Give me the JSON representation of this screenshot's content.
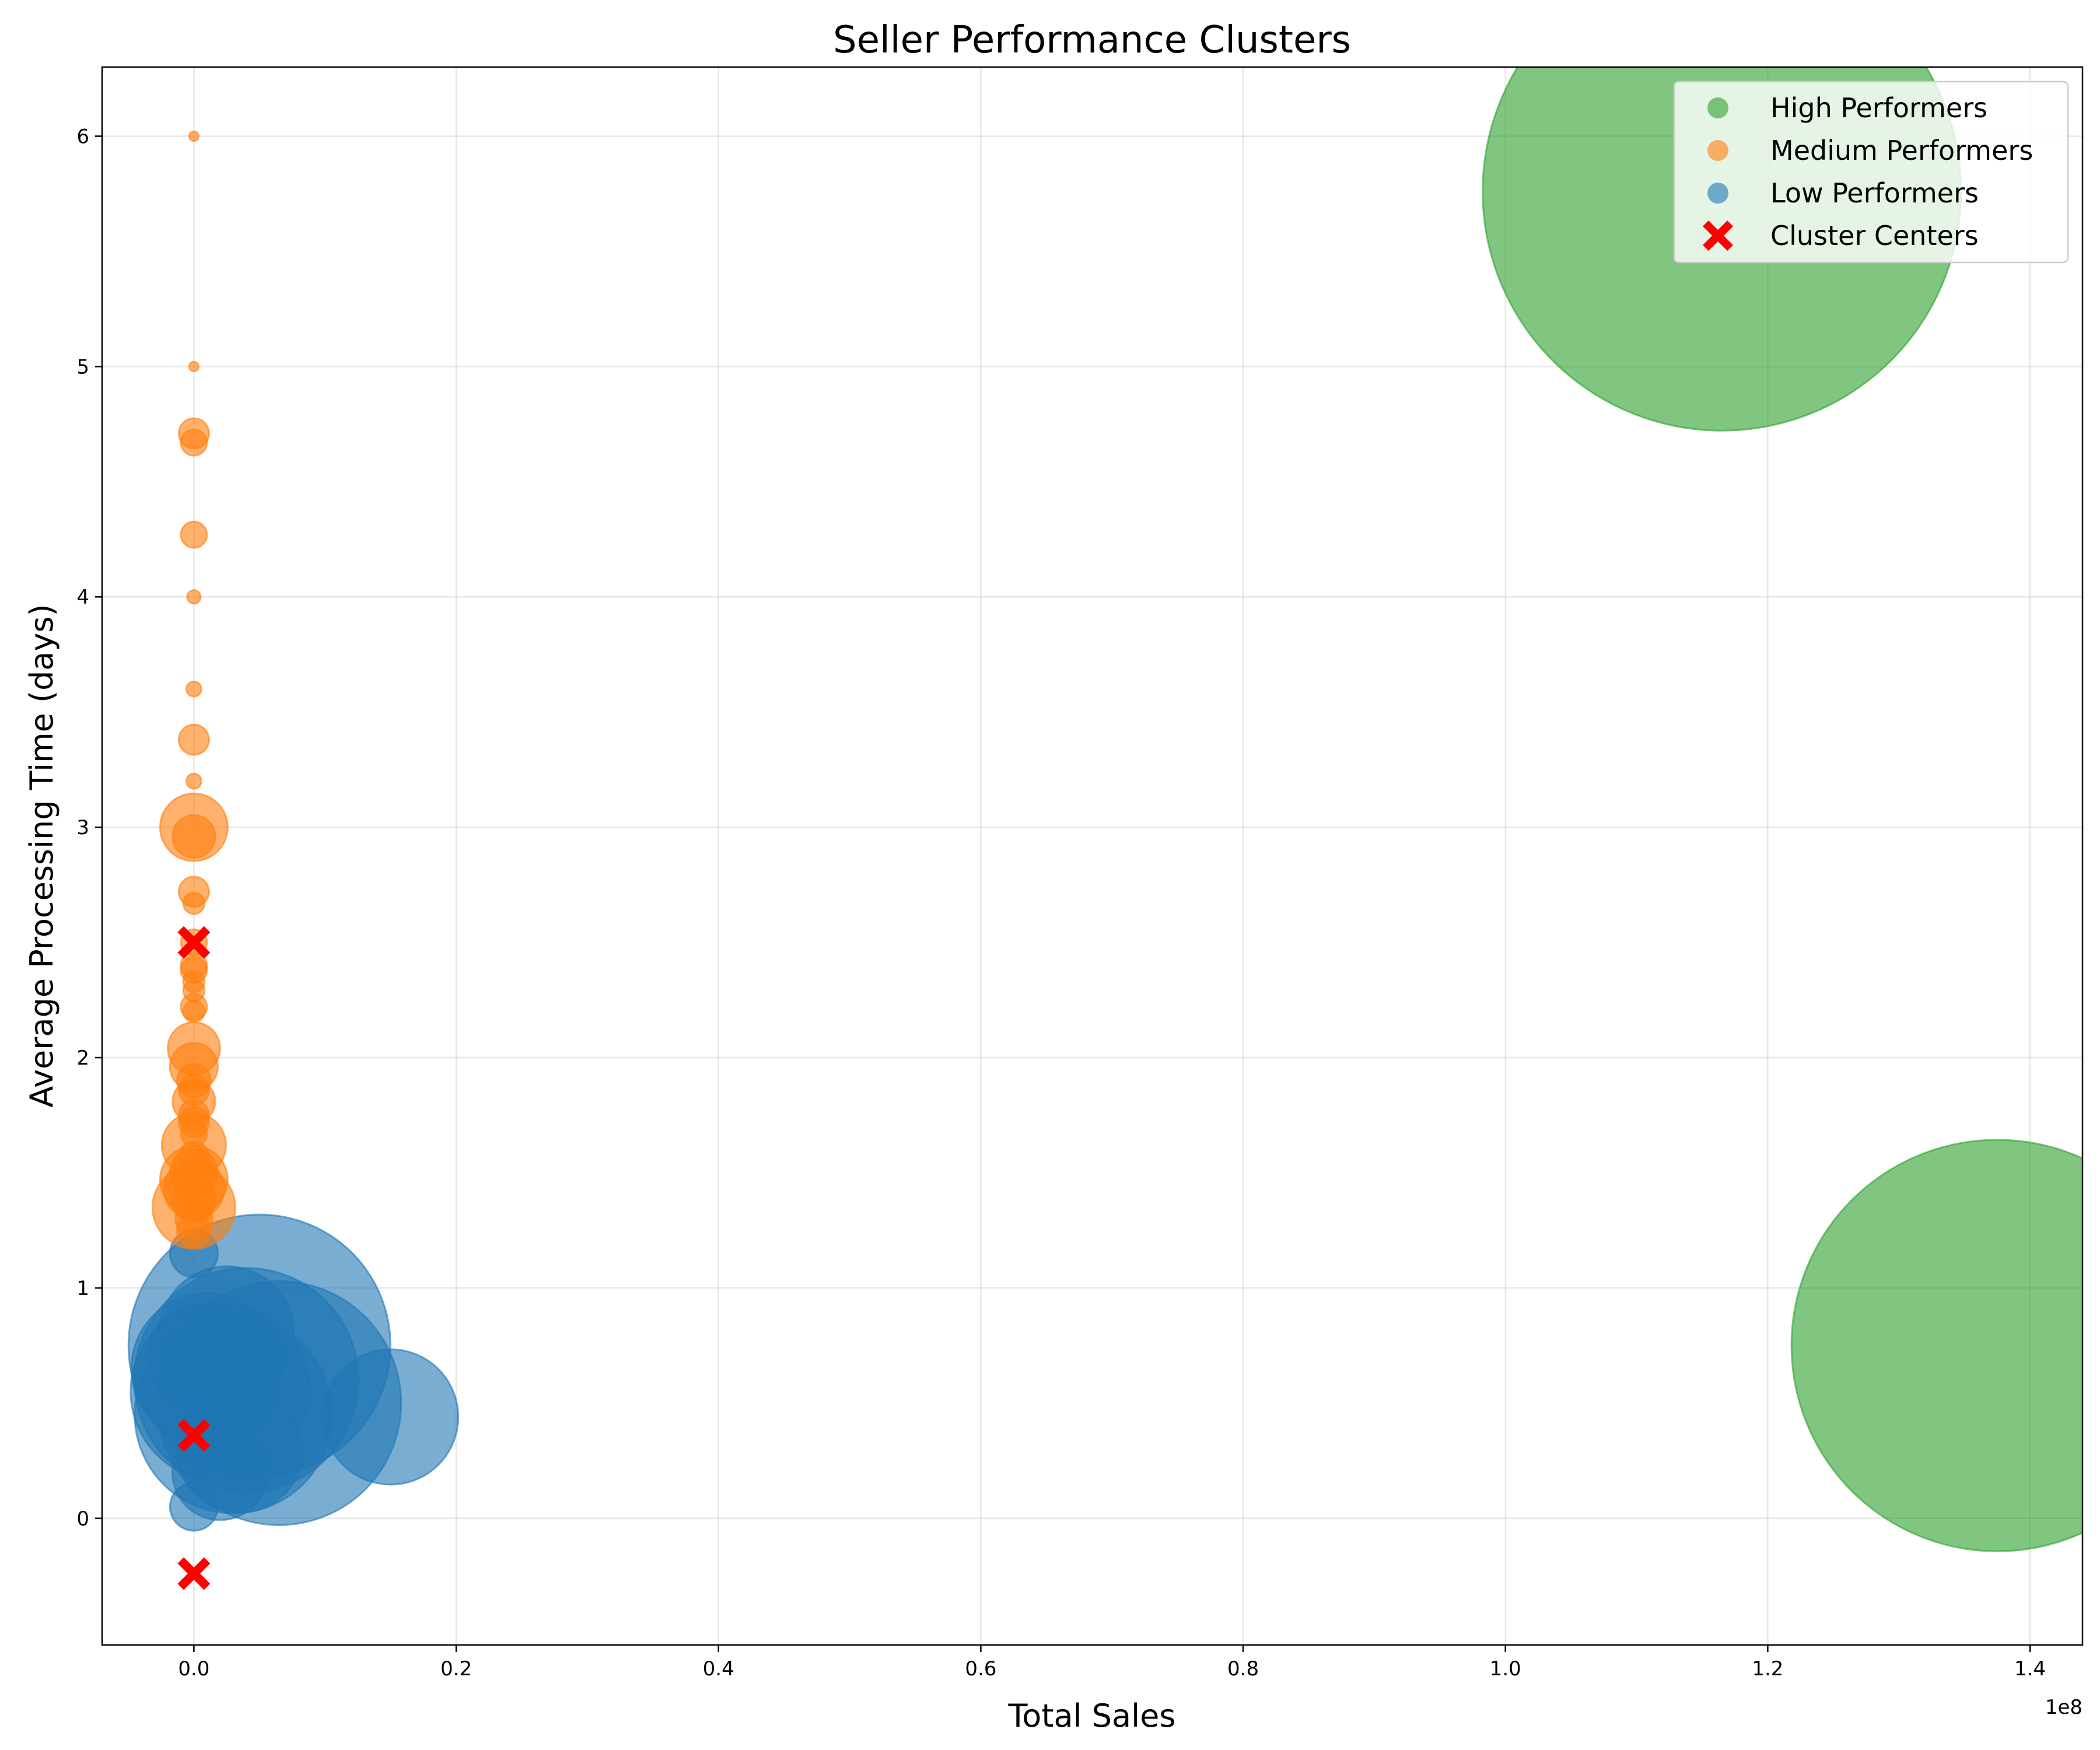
{
  "chart_data": {
    "type": "scatter",
    "title": "Seller Performance Clusters",
    "xlabel": "Total Sales",
    "ylabel": "Average Processing Time (days)",
    "x_offset_label": "1e8",
    "xlim": [
      -0.07,
      1.44
    ],
    "ylim": [
      -0.55,
      6.3
    ],
    "xticks": [
      0.0,
      0.2,
      0.4,
      0.6,
      0.8,
      1.0,
      1.2,
      1.4
    ],
    "xtick_labels": [
      "0.0",
      "0.2",
      "0.4",
      "0.6",
      "0.8",
      "1.0",
      "1.2",
      "1.4"
    ],
    "yticks": [
      0,
      1,
      2,
      3,
      4,
      5,
      6
    ],
    "ytick_labels": [
      "0",
      "1",
      "2",
      "3",
      "4",
      "5",
      "6"
    ],
    "grid": true,
    "legend_position": "top-right",
    "series": [
      {
        "name": "High Performers",
        "color": "#2ca02c",
        "marker": "circle",
        "points": [
          {
            "x": 1.165,
            "y": 5.76,
            "size": 1
          },
          {
            "x": 1.375,
            "y": 0.75,
            "size": 0.74
          }
        ]
      },
      {
        "name": "Medium Performers",
        "color": "#ff7f0e",
        "marker": "circle",
        "points": [
          {
            "x": 0.0,
            "y": 6.0,
            "size": 0.0004
          },
          {
            "x": 0.0,
            "y": 5.0,
            "size": 0.0004
          },
          {
            "x": 0.0,
            "y": 4.71,
            "size": 0.004
          },
          {
            "x": 0.0,
            "y": 4.67,
            "size": 0.003
          },
          {
            "x": 0.0,
            "y": 4.27,
            "size": 0.003
          },
          {
            "x": 0.0,
            "y": 4.0,
            "size": 0.0008
          },
          {
            "x": 0.0,
            "y": 3.6,
            "size": 0.001
          },
          {
            "x": 0.0,
            "y": 3.38,
            "size": 0.004
          },
          {
            "x": 0.0,
            "y": 3.2,
            "size": 0.001
          },
          {
            "x": 0.0,
            "y": 3.0,
            "size": 0.02
          },
          {
            "x": 0.0,
            "y": 2.96,
            "size": 0.008
          },
          {
            "x": 0.0,
            "y": 2.72,
            "size": 0.004
          },
          {
            "x": 0.0,
            "y": 2.67,
            "size": 0.002
          },
          {
            "x": 0.0,
            "y": 2.5,
            "size": 0.003
          },
          {
            "x": 0.0,
            "y": 2.4,
            "size": 0.003
          },
          {
            "x": 0.0,
            "y": 2.38,
            "size": 0.003
          },
          {
            "x": 0.0,
            "y": 2.33,
            "size": 0.002
          },
          {
            "x": 0.0,
            "y": 2.29,
            "size": 0.002
          },
          {
            "x": 0.0,
            "y": 2.22,
            "size": 0.003
          },
          {
            "x": 0.0,
            "y": 2.2,
            "size": 0.002
          },
          {
            "x": 0.0,
            "y": 2.04,
            "size": 0.012
          },
          {
            "x": 0.0,
            "y": 1.96,
            "size": 0.01
          },
          {
            "x": 0.0,
            "y": 1.9,
            "size": 0.005
          },
          {
            "x": 0.0,
            "y": 1.86,
            "size": 0.004
          },
          {
            "x": 0.0,
            "y": 1.81,
            "size": 0.008
          },
          {
            "x": 0.0,
            "y": 1.75,
            "size": 0.004
          },
          {
            "x": 0.0,
            "y": 1.72,
            "size": 0.004
          },
          {
            "x": 0.0,
            "y": 1.67,
            "size": 0.003
          },
          {
            "x": 0.0,
            "y": 1.62,
            "size": 0.018
          },
          {
            "x": 0.0,
            "y": 1.57,
            "size": 0.004
          },
          {
            "x": 0.0,
            "y": 1.5,
            "size": 0.01
          },
          {
            "x": 0.0,
            "y": 1.47,
            "size": 0.02
          },
          {
            "x": 0.0,
            "y": 1.43,
            "size": 0.016
          },
          {
            "x": 0.0,
            "y": 1.38,
            "size": 0.008
          },
          {
            "x": 0.0,
            "y": 1.35,
            "size": 0.03
          },
          {
            "x": 0.0,
            "y": 1.3,
            "size": 0.006
          },
          {
            "x": 0.0,
            "y": 1.25,
            "size": 0.005
          }
        ]
      },
      {
        "name": "Low Performers",
        "color": "#1f77b4",
        "marker": "circle",
        "points": [
          {
            "x": 0.05,
            "y": 0.75,
            "size": 0.3
          },
          {
            "x": 0.065,
            "y": 0.5,
            "size": 0.26
          },
          {
            "x": 0.04,
            "y": 0.6,
            "size": 0.22
          },
          {
            "x": 0.03,
            "y": 0.45,
            "size": 0.17
          },
          {
            "x": 0.02,
            "y": 0.55,
            "size": 0.14
          },
          {
            "x": 0.01,
            "y": 0.65,
            "size": 0.1
          },
          {
            "x": 0.025,
            "y": 0.8,
            "size": 0.08
          },
          {
            "x": 0.15,
            "y": 0.44,
            "size": 0.08
          },
          {
            "x": 0.035,
            "y": 0.3,
            "size": 0.07
          },
          {
            "x": 0.005,
            "y": 0.7,
            "size": 0.05
          },
          {
            "x": 0.02,
            "y": 0.2,
            "size": 0.04
          },
          {
            "x": 0.0,
            "y": 1.15,
            "size": 0.01
          },
          {
            "x": 0.0,
            "y": 0.05,
            "size": 0.01
          }
        ]
      },
      {
        "name": "Cluster Centers",
        "color": "#ff0000",
        "marker": "x",
        "points": [
          {
            "x": 0.0,
            "y": 2.5
          },
          {
            "x": 0.0,
            "y": 0.36
          },
          {
            "x": 0.0,
            "y": -0.24
          }
        ]
      }
    ]
  }
}
